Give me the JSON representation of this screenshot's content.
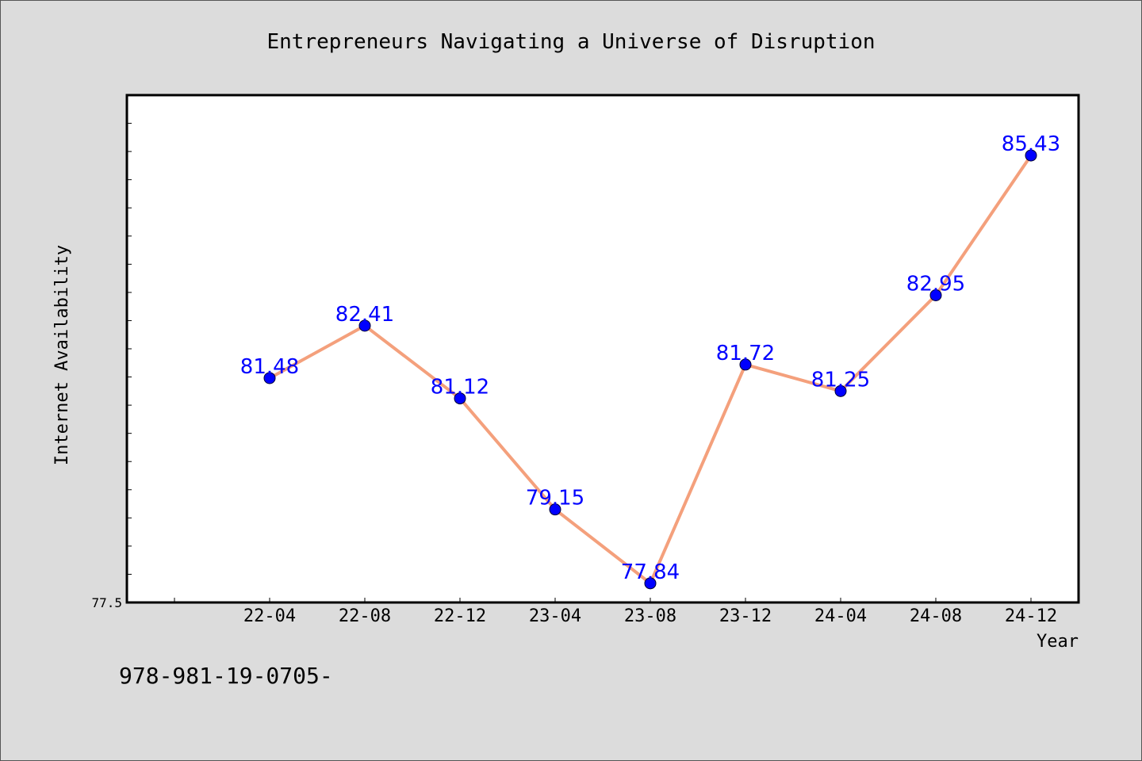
{
  "chart_data": {
    "type": "line",
    "title": "Entrepreneurs Navigating a Universe of Disruption",
    "xlabel": "Year",
    "ylabel": "Internet Availability",
    "categories": [
      "22-04",
      "22-08",
      "22-12",
      "23-04",
      "23-08",
      "23-12",
      "24-04",
      "24-08",
      "24-12"
    ],
    "values": [
      81.48,
      82.41,
      81.12,
      79.15,
      77.84,
      81.72,
      81.25,
      82.95,
      85.43
    ],
    "data_labels": [
      "81.48",
      "82.41",
      "81.12",
      "79.15",
      "77.84",
      "81.72",
      "81.25",
      "82.95",
      "85.43"
    ],
    "ylim": [
      77.5,
      86.5
    ],
    "y_tick_label": "77.5",
    "grid": false,
    "colors": {
      "line": "#f4a07c",
      "marker": "#0000ff",
      "data_label": "#0000ff",
      "plot_background": "#ffffff",
      "figure_background": "#dcdcdc"
    }
  },
  "footnote": "978-981-19-0705-"
}
